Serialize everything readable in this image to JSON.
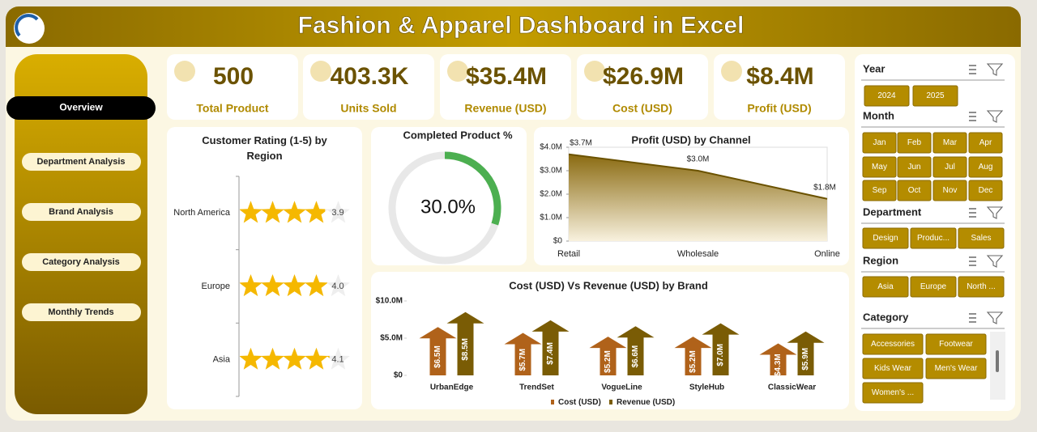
{
  "header": {
    "title": "Fashion & Apparel Dashboard in Excel"
  },
  "nav": [
    "Overview",
    "Department Analysis",
    "Brand Analysis",
    "Category Analysis",
    "Monthly Trends"
  ],
  "kpis": [
    {
      "value": "500",
      "label": "Total Product"
    },
    {
      "value": "403.3K",
      "label": "Units Sold"
    },
    {
      "value": "$35.4M",
      "label": "Revenue (USD)"
    },
    {
      "value": "$26.9M",
      "label": "Cost (USD)"
    },
    {
      "value": "$8.4M",
      "label": "Profit (USD)"
    }
  ],
  "chart_data": [
    {
      "type": "rating",
      "title": "Customer Rating (1-5) by Region",
      "categories": [
        "North America",
        "Europe",
        "Asia"
      ],
      "values": [
        3.9,
        4.0,
        4.1
      ],
      "value_labels": [
        "3.9",
        "4.0",
        "4.1"
      ],
      "xlim": [
        0,
        5
      ],
      "color": "#f5b800"
    },
    {
      "type": "donut",
      "title": "Completed Product %",
      "values": [
        30
      ],
      "value_labels": [
        "30.0%"
      ],
      "color": "#4caf50"
    },
    {
      "type": "area",
      "title": "Profit (USD) by Channel",
      "categories": [
        "Retail",
        "Wholesale",
        "Online"
      ],
      "values": [
        3700000,
        3000000,
        1800000
      ],
      "value_labels": [
        "$3.7M",
        "$3.0M",
        "$1.8M"
      ],
      "ylim": [
        0,
        4000000
      ],
      "yticks": [
        {
          "value": 0,
          "label": "$0"
        },
        {
          "value": 1000000,
          "label": "$1.0M"
        },
        {
          "value": 2000000,
          "label": "$2.0M"
        },
        {
          "value": 3000000,
          "label": "$3.0M"
        },
        {
          "value": 4000000,
          "label": "$4.0M"
        }
      ],
      "color": "#6b5200"
    },
    {
      "type": "arrow-bar",
      "title": "Cost (USD) Vs Revenue (USD) by Brand",
      "categories": [
        "UrbanEdge",
        "TrendSet",
        "VogueLine",
        "StyleHub",
        "ClassicWear"
      ],
      "series": [
        {
          "name": "Cost (USD)",
          "color": "#b0621a",
          "values": [
            6500000,
            5700000,
            5200000,
            5200000,
            4300000
          ],
          "value_labels": [
            "$6.5M",
            "$5.7M",
            "$5.2M",
            "$5.2M",
            "$4.3M"
          ]
        },
        {
          "name": "Revenue (USD)",
          "color": "#7a5c05",
          "values": [
            8500000,
            7400000,
            6600000,
            7000000,
            5900000
          ],
          "value_labels": [
            "$8.5M",
            "$7.4M",
            "$6.6M",
            "$7.0M",
            "$5.9M"
          ]
        }
      ],
      "ylim": [
        0,
        10000000
      ],
      "yticks": [
        {
          "value": 0,
          "label": "$0"
        },
        {
          "value": 5000000,
          "label": "$5.0M"
        },
        {
          "value": 10000000,
          "label": "$10.0M"
        }
      ],
      "legend": "bottom"
    }
  ],
  "slicers": [
    {
      "title": "Year",
      "items": [
        "2024",
        "2025"
      ]
    },
    {
      "title": "Month",
      "items": [
        "Jan",
        "Feb",
        "Mar",
        "Apr",
        "May",
        "Jun",
        "Jul",
        "Aug",
        "Sep",
        "Oct",
        "Nov",
        "Dec"
      ]
    },
    {
      "title": "Department",
      "items": [
        "Design",
        "Produc...",
        "Sales"
      ]
    },
    {
      "title": "Region",
      "items": [
        "Asia",
        "Europe",
        "North ..."
      ]
    },
    {
      "title": "Category",
      "items": [
        "Accessories",
        "Footwear",
        "Kids Wear",
        "Men's Wear",
        "Women's ..."
      ]
    }
  ]
}
